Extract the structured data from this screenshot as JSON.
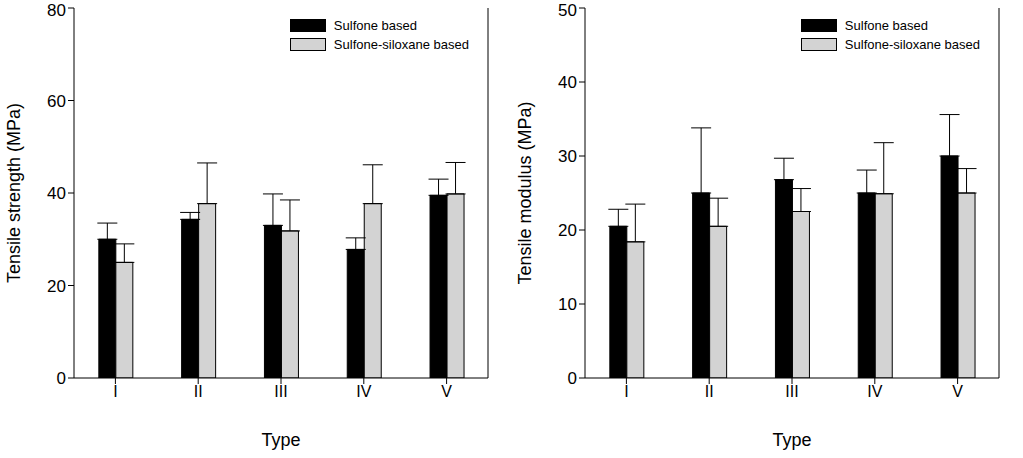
{
  "chart_data": [
    {
      "type": "bar",
      "x_label": "Type",
      "y_label": "Tensile strength (MPa)",
      "categories": [
        "I",
        "II",
        "III",
        "IV",
        "V"
      ],
      "series": [
        {
          "name": "Sulfone based",
          "color": "#000000",
          "values": [
            30,
            34.3,
            33,
            27.8,
            39.5
          ],
          "errors": [
            3.5,
            1.5,
            6.8,
            2.5,
            3.5
          ]
        },
        {
          "name": "Sulfone-siloxane based",
          "color": "#d3d3d3",
          "values": [
            25,
            37.7,
            31.8,
            37.7,
            39.8
          ],
          "errors": [
            4,
            8.8,
            6.7,
            8.4,
            6.8
          ]
        }
      ],
      "ylim": [
        0,
        80
      ],
      "yticks": [
        0,
        20,
        40,
        60,
        80
      ],
      "grid": false,
      "legend": "upper right"
    },
    {
      "type": "bar",
      "x_label": "Type",
      "y_label": "Tensile modulus (MPa)",
      "categories": [
        "I",
        "II",
        "III",
        "IV",
        "V"
      ],
      "series": [
        {
          "name": "Sulfone based",
          "color": "#000000",
          "values": [
            20.5,
            25,
            26.8,
            25,
            30
          ],
          "errors": [
            2.3,
            8.8,
            2.9,
            3.1,
            5.6
          ]
        },
        {
          "name": "Sulfone-siloxane based",
          "color": "#d3d3d3",
          "values": [
            18.4,
            20.5,
            22.5,
            24.9,
            25
          ],
          "errors": [
            5.1,
            3.8,
            3.1,
            6.9,
            3.3
          ]
        }
      ],
      "ylim": [
        0,
        50
      ],
      "yticks": [
        0,
        10,
        20,
        30,
        40,
        50
      ],
      "grid": false,
      "legend": "upper right"
    }
  ]
}
